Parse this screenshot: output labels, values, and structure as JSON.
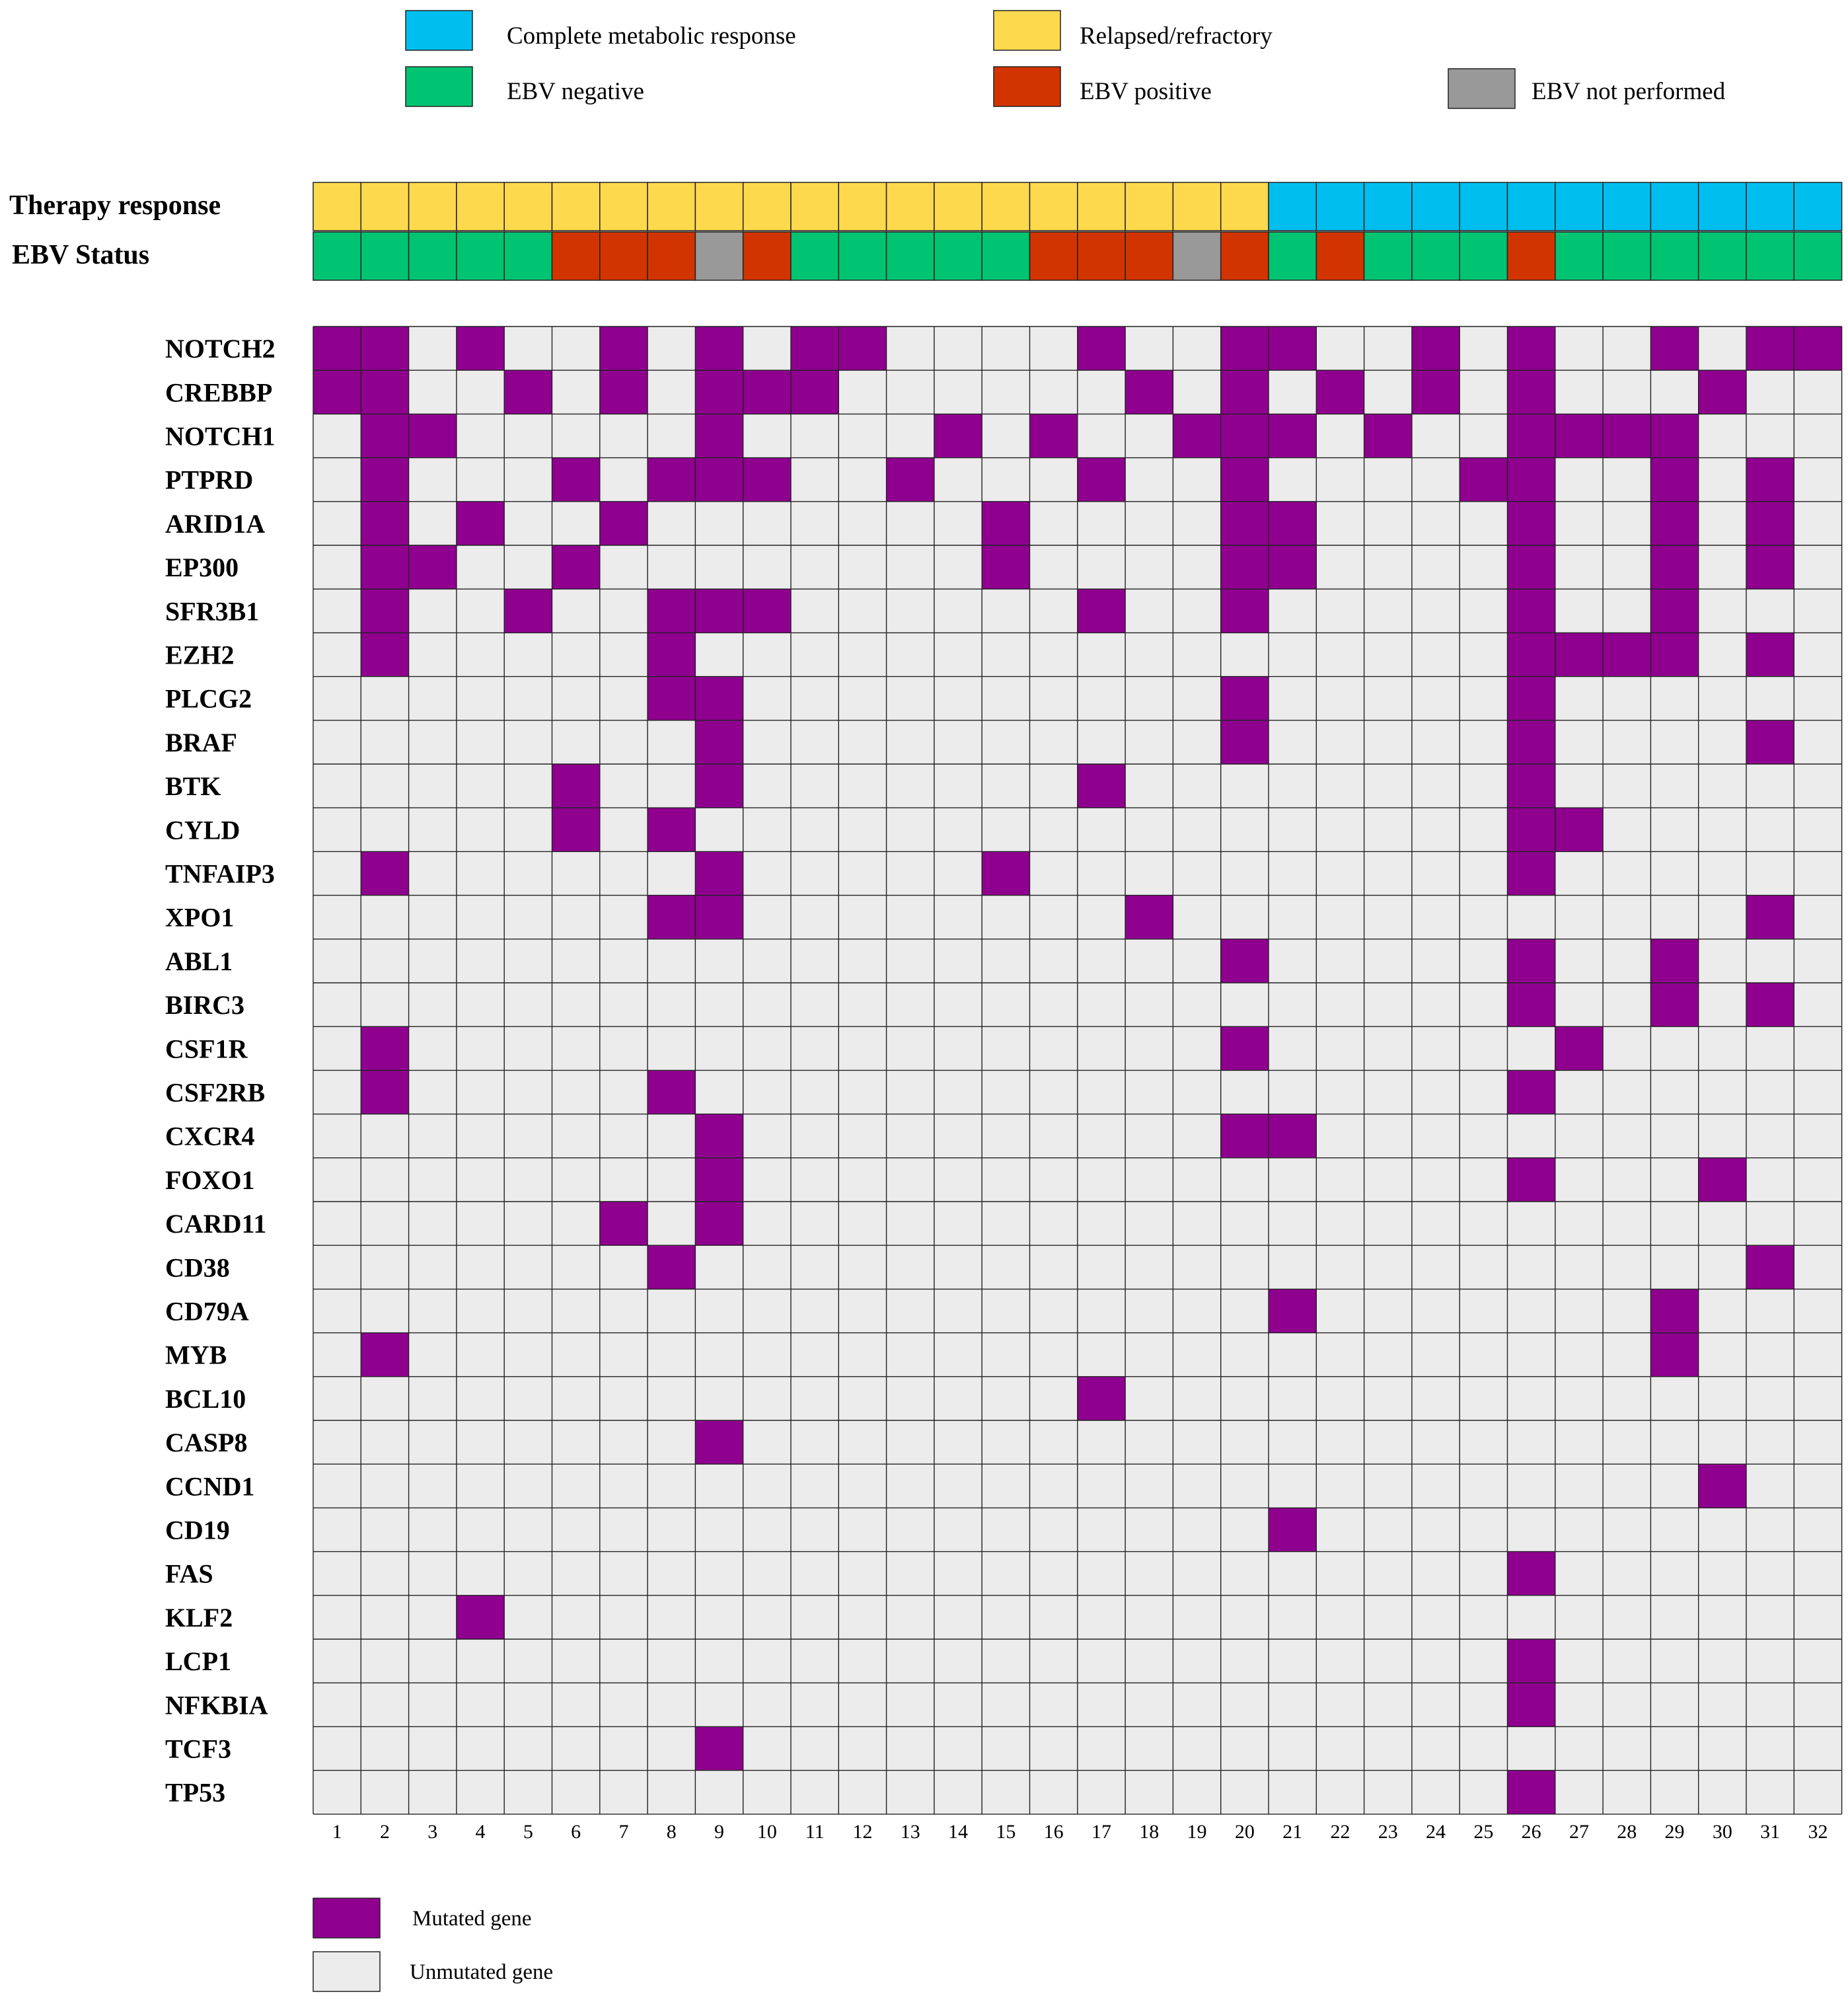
{
  "chart_data": {
    "type": "heatmap",
    "title": "",
    "annotation_rows": [
      {
        "label": "Therapy response",
        "key": "therapy"
      },
      {
        "label": "EBV Status",
        "key": "ebv"
      }
    ],
    "samples": [
      "1",
      "2",
      "3",
      "4",
      "5",
      "6",
      "7",
      "8",
      "9",
      "10",
      "11",
      "12",
      "13",
      "14",
      "15",
      "16",
      "17",
      "18",
      "19",
      "20",
      "21",
      "22",
      "23",
      "24",
      "25",
      "26",
      "27",
      "28",
      "29",
      "30",
      "31",
      "32"
    ],
    "therapy": [
      "R",
      "R",
      "R",
      "R",
      "R",
      "R",
      "R",
      "R",
      "R",
      "R",
      "R",
      "R",
      "R",
      "R",
      "R",
      "R",
      "R",
      "R",
      "R",
      "R",
      "C",
      "C",
      "C",
      "C",
      "C",
      "C",
      "C",
      "C",
      "C",
      "C",
      "C",
      "C"
    ],
    "ebv": [
      "N",
      "N",
      "N",
      "N",
      "N",
      "P",
      "P",
      "P",
      "X",
      "P",
      "N",
      "N",
      "N",
      "N",
      "N",
      "P",
      "P",
      "P",
      "X",
      "P",
      "N",
      "P",
      "N",
      "N",
      "N",
      "P",
      "N",
      "N",
      "N",
      "N",
      "N",
      "N"
    ],
    "category_colors": {
      "C": "#00bfef",
      "R": "#fdd94e",
      "N": "#00c472",
      "P": "#d23400",
      "X": "#999999"
    },
    "mutated_color": "#8f008f",
    "unmutated_color": "#ececec",
    "genes": [
      "NOTCH2",
      "CREBBP",
      "NOTCH1",
      "PTPRD",
      "ARID1A",
      "EP300",
      "SFR3B1",
      "EZH2",
      "PLCG2",
      "BRAF",
      "BTK",
      "CYLD",
      "TNFAIP3",
      "XPO1",
      "ABL1",
      "BIRC3",
      "CSF1R",
      "CSF2RB",
      "CXCR4",
      "FOXO1",
      "CARD11",
      "CD38",
      "CD79A",
      "MYB",
      "BCL10",
      "CASP8",
      "CCND1",
      "CD19",
      "FAS",
      "KLF2",
      "LCP1",
      "NFKBIA",
      "TCF3",
      "TP53"
    ],
    "mutations": [
      [
        1,
        2,
        4,
        7,
        9,
        11,
        12,
        17,
        20,
        21,
        24,
        26,
        29,
        31,
        32
      ],
      [
        1,
        2,
        5,
        7,
        9,
        10,
        11,
        18,
        20,
        22,
        24,
        26,
        30
      ],
      [
        2,
        3,
        9,
        14,
        16,
        19,
        20,
        21,
        23,
        26,
        27,
        28,
        29
      ],
      [
        2,
        6,
        8,
        9,
        10,
        13,
        17,
        20,
        25,
        26,
        29,
        31
      ],
      [
        2,
        4,
        7,
        15,
        20,
        21,
        26,
        29,
        31
      ],
      [
        2,
        3,
        6,
        15,
        20,
        21,
        26,
        29,
        31
      ],
      [
        2,
        5,
        8,
        9,
        10,
        17,
        20,
        26,
        29
      ],
      [
        2,
        8,
        26,
        27,
        28,
        29,
        31
      ],
      [
        8,
        9,
        20,
        26
      ],
      [
        9,
        20,
        26,
        31
      ],
      [
        6,
        9,
        17,
        26
      ],
      [
        6,
        8,
        26,
        27
      ],
      [
        2,
        9,
        15,
        26
      ],
      [
        8,
        9,
        18,
        31
      ],
      [
        20,
        26,
        29
      ],
      [
        26,
        29,
        31
      ],
      [
        2,
        20,
        27
      ],
      [
        2,
        8,
        26
      ],
      [
        9,
        20,
        21
      ],
      [
        9,
        26,
        30
      ],
      [
        7,
        9
      ],
      [
        8,
        31
      ],
      [
        21,
        29
      ],
      [
        2,
        29
      ],
      [
        17
      ],
      [
        9
      ],
      [
        30
      ],
      [
        21
      ],
      [
        26
      ],
      [
        4
      ],
      [
        26
      ],
      [
        26
      ],
      [
        9
      ],
      [
        26
      ]
    ],
    "legend_top": [
      {
        "label": "Complete metabolic response",
        "key": "C"
      },
      {
        "label": "Relapsed/refractory",
        "key": "R"
      },
      {
        "label": "EBV negative",
        "key": "N"
      },
      {
        "label": "EBV positive",
        "key": "P"
      },
      {
        "label": "EBV not performed",
        "key": "X"
      }
    ],
    "legend_bottom": [
      {
        "label": "Mutated gene",
        "key": "mut"
      },
      {
        "label": "Unmutated gene",
        "key": "unmut"
      }
    ]
  }
}
